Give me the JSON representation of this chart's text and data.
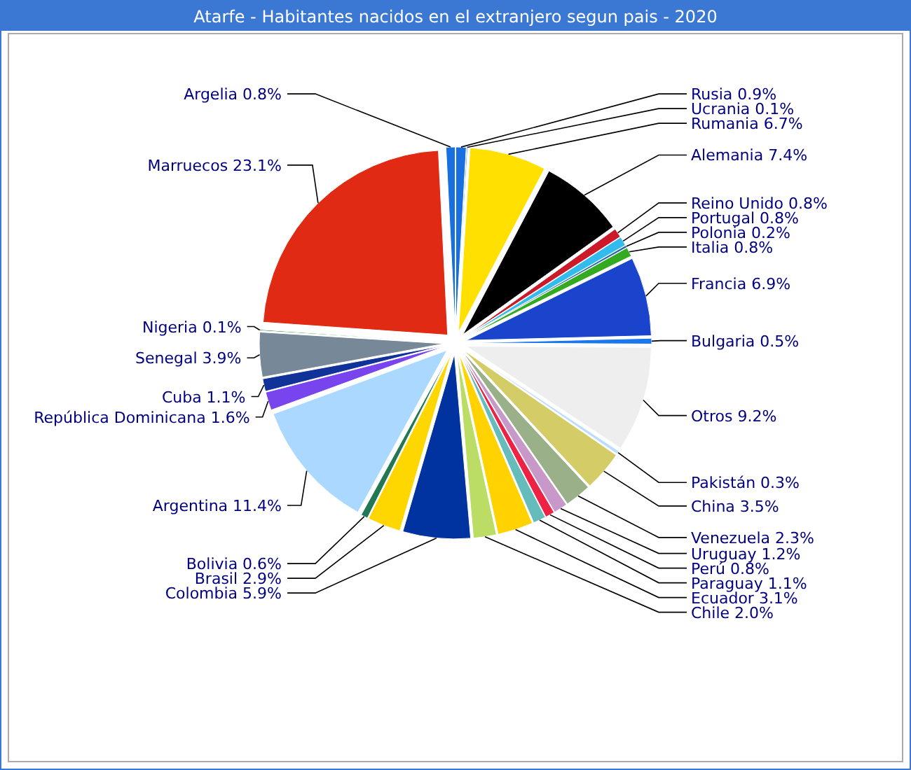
{
  "chart_data": {
    "type": "pie",
    "title": "Atarfe - Habitantes nacidos en el extranjero segun pais - 2020",
    "categories": [
      "Rusia",
      "Ucrania",
      "Rumania",
      "Alemania",
      "Reino Unido",
      "Portugal",
      "Polonia",
      "Italia",
      "Francia",
      "Bulgaria",
      "Otros",
      "Pakistán",
      "China",
      "Venezuela",
      "Uruguay",
      "Perú",
      "Paraguay",
      "Ecuador",
      "Chile",
      "Colombia",
      "Brasil",
      "Bolivia",
      "Argentina",
      "República Dominicana",
      "Cuba",
      "Senegal",
      "Nigeria",
      "Marruecos",
      "Argelia"
    ],
    "values": [
      0.9,
      0.1,
      6.7,
      7.4,
      0.8,
      0.8,
      0.2,
      0.8,
      6.9,
      0.5,
      9.2,
      0.3,
      3.5,
      2.3,
      1.2,
      0.8,
      1.1,
      3.1,
      2.0,
      5.9,
      2.9,
      0.6,
      11.4,
      1.6,
      1.1,
      3.9,
      0.1,
      23.1,
      0.8
    ],
    "value_labels": [
      "0.9%",
      "0.1%",
      "6.7%",
      "7.4%",
      "0.8%",
      "0.8%",
      "0.2%",
      "0.8%",
      "6.9%",
      "0.5%",
      "9.2%",
      "0.3%",
      "3.5%",
      "2.3%",
      "1.2%",
      "0.8%",
      "1.1%",
      "3.1%",
      "2.0%",
      "5.9%",
      "2.9%",
      "0.6%",
      "11.4%",
      "1.6%",
      "1.1%",
      "3.9%",
      "0.1%",
      "23.1%",
      "0.8%"
    ],
    "colors": [
      "#1a6fe0",
      "#5599dd",
      "#ffe000",
      "#000000",
      "#cc1a2a",
      "#33bbee",
      "#2266aa",
      "#33aa22",
      "#1a44cc",
      "#1a77ee",
      "#eeeeee",
      "#bbddff",
      "#d4cc66",
      "#99b088",
      "#c899c8",
      "#ee2244",
      "#66bbbb",
      "#ffd200",
      "#bbdd66",
      "#0033a0",
      "#ffd700",
      "#227755",
      "#aad8ff",
      "#7744ee",
      "#113399",
      "#778899",
      "#228833",
      "#e02a14",
      "#1a6fe0"
    ]
  }
}
